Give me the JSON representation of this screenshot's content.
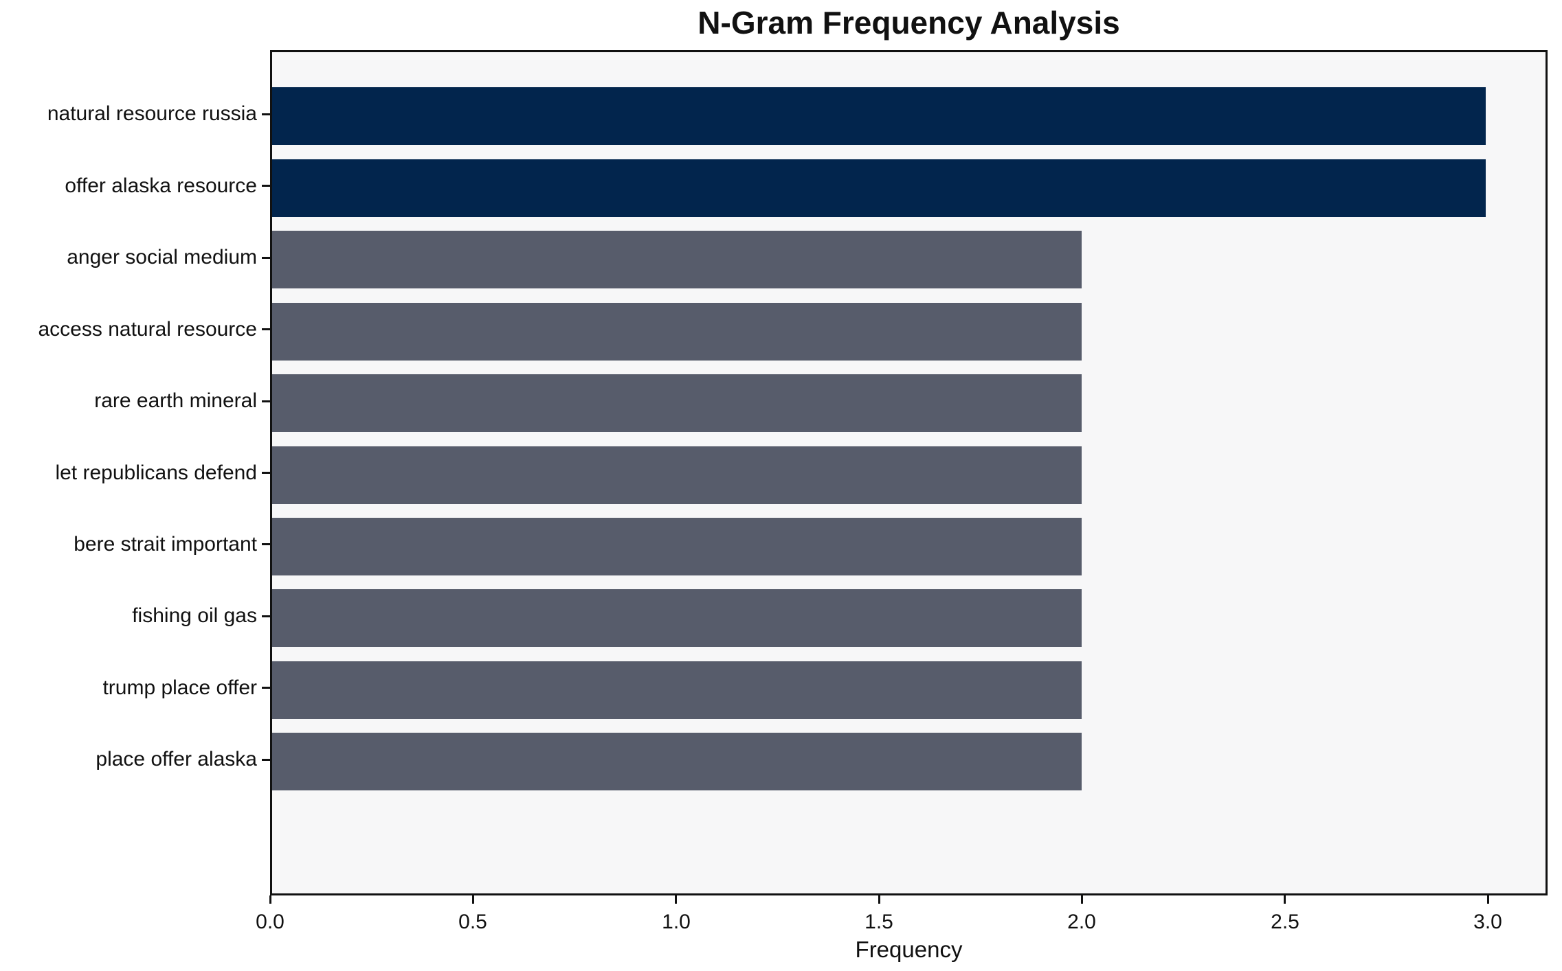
{
  "chart_data": {
    "type": "bar",
    "orientation": "horizontal",
    "title": "N-Gram Frequency Analysis",
    "xlabel": "Frequency",
    "ylabel": "",
    "categories": [
      "natural resource russia",
      "offer alaska resource",
      "anger social medium",
      "access natural resource",
      "rare earth mineral",
      "let republicans defend",
      "bere strait important",
      "fishing oil gas",
      "trump place offer",
      "place offer alaska"
    ],
    "values": [
      3,
      3,
      2,
      2,
      2,
      2,
      2,
      2,
      2,
      2
    ],
    "bar_colors": [
      "#02254d",
      "#02254d",
      "#575c6b",
      "#575c6b",
      "#575c6b",
      "#575c6b",
      "#575c6b",
      "#575c6b",
      "#575c6b",
      "#575c6b"
    ],
    "x_tick_labels": [
      "0.0",
      "0.5",
      "1.0",
      "1.5",
      "2.0",
      "2.5",
      "3.0"
    ],
    "x_tick_values": [
      0.0,
      0.5,
      1.0,
      1.5,
      2.0,
      2.5,
      3.0
    ],
    "xlim": [
      0,
      3.147
    ],
    "grid": false,
    "legend": null,
    "colors": {
      "highlight": "#02254d",
      "default_bar": "#575c6b",
      "plot_background": "#f7f7f8",
      "figure_background": "#ffffff",
      "axis": "#111111"
    }
  }
}
